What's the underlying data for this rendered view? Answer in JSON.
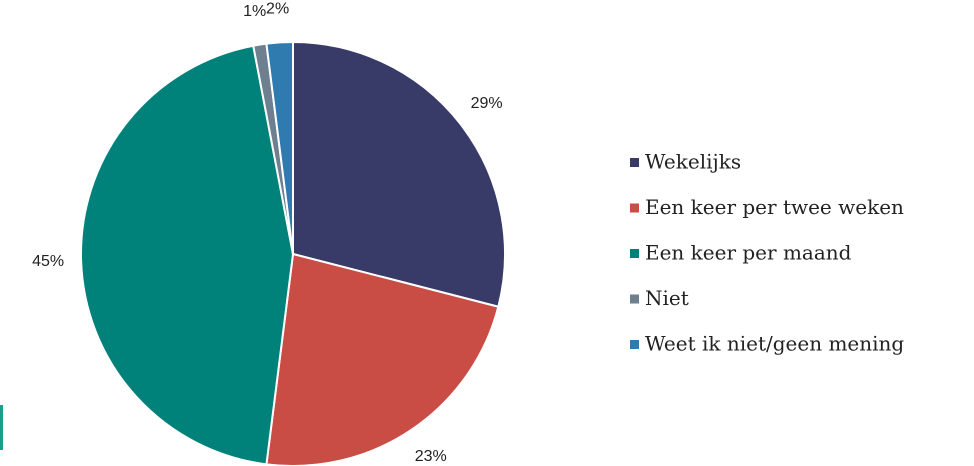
{
  "chart_data": {
    "type": "pie",
    "categories": [
      "Wekelijks",
      "Een keer per twee weken",
      "Een keer per maand",
      "Niet",
      "Weet ik niet/geen mening"
    ],
    "values": [
      29,
      23,
      45,
      1,
      2
    ],
    "value_labels": [
      "29%",
      "23%",
      "45%",
      "1%",
      "2%"
    ],
    "colors": [
      "#383a68",
      "#c94c45",
      "#00827a",
      "#6e7f8f",
      "#2f7bb0"
    ],
    "legend": "right"
  }
}
